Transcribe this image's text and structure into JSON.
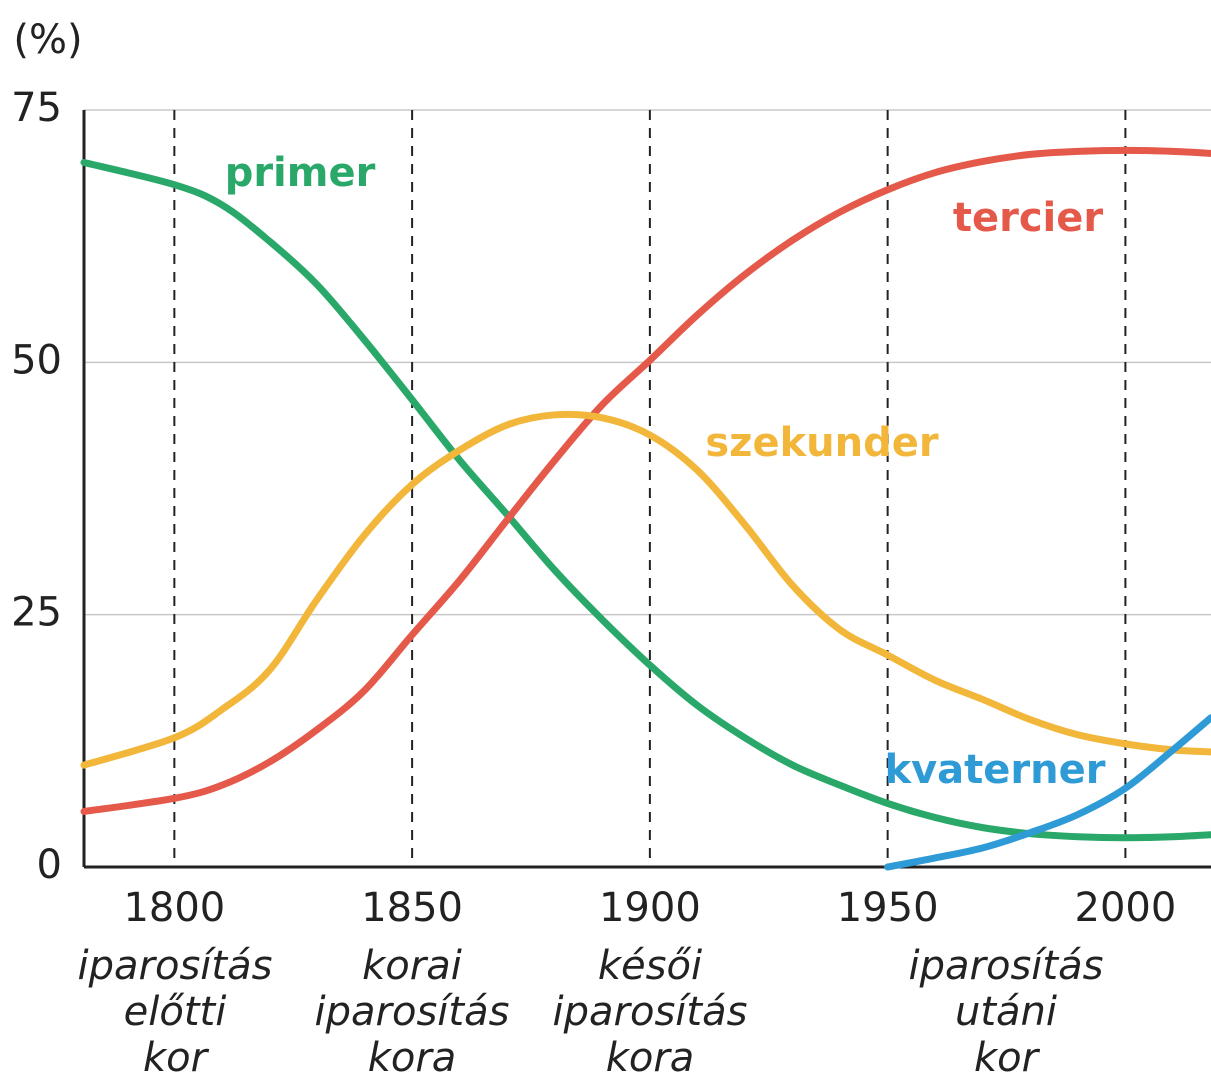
{
  "chart_data": {
    "type": "line",
    "ylabel": "(%)",
    "x": [
      1781,
      1800,
      1810,
      1820,
      1830,
      1840,
      1850,
      1860,
      1870,
      1880,
      1890,
      1900,
      1910,
      1920,
      1930,
      1940,
      1950,
      1960,
      1970,
      1980,
      1990,
      2000,
      2010,
      2018
    ],
    "series": [
      {
        "name": "primer",
        "color": "#2aa86a",
        "values": [
          69.8,
          67.6,
          65.6,
          62,
          57.7,
          52.2,
          46.3,
          40.3,
          34.9,
          29.4,
          24.5,
          20,
          16,
          12.8,
          10.1,
          8.1,
          6.3,
          4.9,
          3.9,
          3.3,
          3,
          2.9,
          3,
          3.2
        ]
      },
      {
        "name": "tercier",
        "color": "#e5594a",
        "values": [
          5.5,
          6.8,
          8.1,
          10.4,
          13.6,
          17.5,
          23,
          28.4,
          34.4,
          40.3,
          45.8,
          50.2,
          54.7,
          58.7,
          62.1,
          64.9,
          67.1,
          68.8,
          69.9,
          70.6,
          70.9,
          71,
          70.9,
          70.7
        ]
      },
      {
        "name": "szekunder",
        "color": "#f2b73a",
        "values": [
          10.1,
          12.8,
          15.6,
          19.5,
          26.5,
          32.9,
          37.9,
          41.3,
          43.8,
          44.8,
          44.5,
          42.8,
          39.3,
          33.9,
          27.9,
          23.5,
          21,
          18.5,
          16.6,
          14.6,
          13.1,
          12.2,
          11.6,
          11.4
        ]
      },
      {
        "name": "kvaterner",
        "color": "#2f9bd6",
        "values": [
          null,
          null,
          null,
          null,
          null,
          null,
          null,
          null,
          null,
          null,
          null,
          null,
          null,
          null,
          null,
          null,
          0,
          0.9,
          1.9,
          3.4,
          5.2,
          7.8,
          11.6,
          14.8
        ]
      }
    ],
    "xlim": [
      1781,
      2018
    ],
    "xticks": [
      1800,
      1850,
      1900,
      1950,
      2000
    ],
    "ylim": [
      0,
      75
    ],
    "yticks": [
      0,
      25,
      50,
      75
    ],
    "grid": true,
    "periods": [
      [
        "iparosítás",
        "előtti",
        "kor"
      ],
      [
        "korai",
        "iparosítás",
        "kora"
      ],
      [
        "késői",
        "iparosítás",
        "kora"
      ],
      [
        "iparosítás",
        "utáni",
        "kor"
      ]
    ]
  }
}
